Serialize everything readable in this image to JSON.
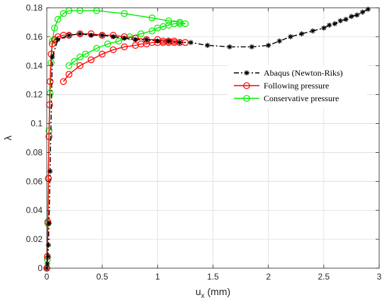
{
  "chart_data": {
    "type": "line",
    "title": "",
    "xlabel": "u",
    "xlabel_sub": "x",
    "xlabel_unit": " (mm)",
    "ylabel": "λ",
    "xlim": [
      0,
      3
    ],
    "ylim": [
      0,
      0.18
    ],
    "xticks": [
      0,
      0.5,
      1,
      1.5,
      2,
      2.5,
      3
    ],
    "xtick_labels": [
      "0",
      "0.5",
      "1",
      "1.5",
      "2",
      "2.5",
      "3"
    ],
    "yticks": [
      0,
      0.02,
      0.04,
      0.06,
      0.08,
      0.1,
      0.12,
      0.14,
      0.16,
      0.18
    ],
    "ytick_labels": [
      "0",
      "0.02",
      "0.04",
      "0.06",
      "0.08",
      "0.1",
      "0.12",
      "0.14",
      "0.16",
      "0.18"
    ],
    "grid": true,
    "legend_position": "right",
    "series": [
      {
        "name": "Abaqus (Newton-Riks)",
        "color": "#000000",
        "line_style": "dashdot",
        "marker": "asterisk",
        "x": [
          0,
          0.005,
          0.01,
          0.015,
          0.02,
          0.03,
          0.05,
          0.1,
          0.2,
          0.3,
          0.4,
          0.5,
          0.6,
          0.7,
          0.8,
          0.9,
          1.0,
          1.1,
          1.2,
          1.3,
          1.45,
          1.65,
          1.85,
          2.0,
          2.1,
          2.2,
          2.3,
          2.4,
          2.5,
          2.55,
          2.6,
          2.65,
          2.7,
          2.75,
          2.8,
          2.85,
          2.9
        ],
        "y": [
          0,
          0.003,
          0.008,
          0.016,
          0.031,
          0.067,
          0.146,
          0.158,
          0.161,
          0.162,
          0.161,
          0.161,
          0.16,
          0.159,
          0.158,
          0.158,
          0.157,
          0.157,
          0.156,
          0.156,
          0.154,
          0.153,
          0.153,
          0.154,
          0.157,
          0.16,
          0.162,
          0.164,
          0.166,
          0.168,
          0.169,
          0.171,
          0.172,
          0.174,
          0.175,
          0.177,
          0.179
        ]
      },
      {
        "name": "Following pressure",
        "color": "#ff0000",
        "line_style": "solid",
        "marker": "circle",
        "x": [
          0,
          0.005,
          0.01,
          0.015,
          0.02,
          0.025,
          0.03,
          0.04,
          0.05,
          0.07,
          0.1,
          0.15,
          0.2,
          0.3,
          0.4,
          0.5,
          0.6,
          0.7,
          0.8,
          0.9,
          1.0,
          1.05,
          1.1,
          1.15,
          1.2,
          1.25,
          1.15,
          1.1,
          1.05,
          1.0,
          0.95,
          0.9,
          0.85,
          0.8,
          0.7,
          0.6,
          0.5,
          0.4,
          0.3,
          0.2,
          0.15
        ],
        "y": [
          0,
          0.008,
          0.032,
          0.062,
          0.091,
          0.113,
          0.129,
          0.148,
          0.155,
          0.158,
          0.16,
          0.161,
          0.161,
          0.162,
          0.162,
          0.161,
          0.161,
          0.16,
          0.159,
          0.158,
          0.158,
          0.157,
          0.157,
          0.157,
          0.156,
          0.156,
          0.156,
          0.156,
          0.156,
          0.156,
          0.156,
          0.155,
          0.155,
          0.154,
          0.153,
          0.151,
          0.148,
          0.144,
          0.14,
          0.134,
          0.129
        ]
      },
      {
        "name": "Conservative pressure",
        "color": "#00ee00",
        "line_style": "solid",
        "marker": "circle",
        "x": [
          0,
          0.005,
          0.01,
          0.015,
          0.02,
          0.03,
          0.04,
          0.05,
          0.07,
          0.1,
          0.15,
          0.2,
          0.3,
          0.45,
          0.7,
          0.95,
          1.1,
          1.2,
          1.25,
          1.2,
          1.15,
          1.1,
          1.05,
          1.0,
          0.95,
          0.85,
          0.75,
          0.65,
          0.55,
          0.45,
          0.35,
          0.3,
          0.25,
          0.2
        ],
        "y": [
          0,
          0.006,
          0.031,
          0.062,
          0.095,
          0.121,
          0.142,
          0.157,
          0.166,
          0.172,
          0.176,
          0.178,
          0.178,
          0.178,
          0.176,
          0.173,
          0.171,
          0.17,
          0.169,
          0.169,
          0.169,
          0.168,
          0.167,
          0.166,
          0.164,
          0.162,
          0.16,
          0.157,
          0.155,
          0.152,
          0.148,
          0.146,
          0.143,
          0.14
        ]
      }
    ]
  }
}
